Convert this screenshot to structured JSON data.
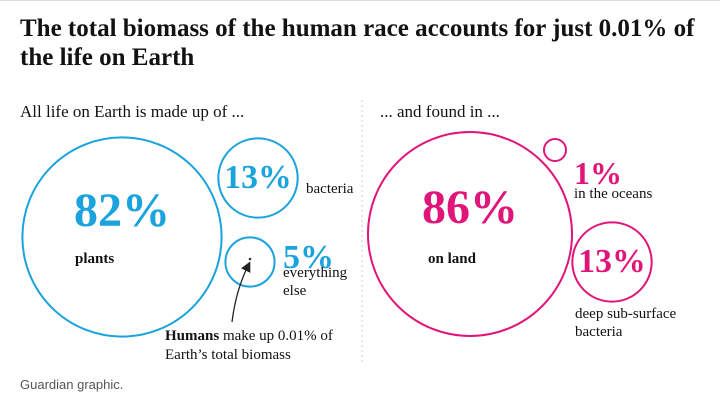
{
  "title": "The total biomass of the human race accounts for just 0.01% of the life on Earth",
  "source": "Guardian graphic.",
  "chart_data": [
    {
      "type": "bubble",
      "subtitle": "All life on Earth is made up of ...",
      "categories": [
        "plants",
        "bacteria",
        "everything else"
      ],
      "values": [
        82,
        13,
        5
      ],
      "value_labels": [
        "82%",
        "13%",
        "5%"
      ],
      "color": "#1aa3dd",
      "annotation": {
        "bold": "Humans",
        "text": "make up 0.01% of Earth’s total biomass"
      }
    },
    {
      "type": "bubble",
      "subtitle": "... and found in ...",
      "categories": [
        "on land",
        "in the oceans",
        "deep sub-surface bacteria"
      ],
      "values": [
        86,
        1,
        13
      ],
      "value_labels": [
        "86%",
        "1%",
        "13%"
      ],
      "color": "#e0157a"
    }
  ]
}
